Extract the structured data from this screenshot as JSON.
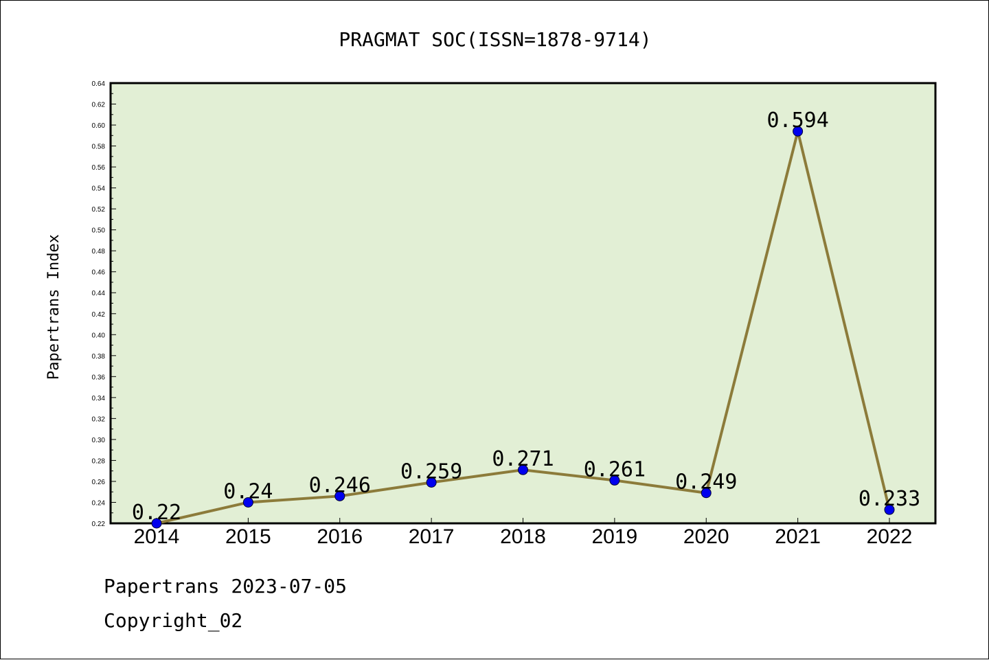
{
  "chart_data": {
    "type": "line",
    "title": "PRAGMAT SOC(ISSN=1878-9714)",
    "ylabel": "Papertrans Index",
    "xlabel": "",
    "categories": [
      "2014",
      "2015",
      "2016",
      "2017",
      "2018",
      "2019",
      "2020",
      "2021",
      "2022"
    ],
    "series": [
      {
        "values": [
          0.22,
          0.24,
          0.246,
          0.259,
          0.271,
          0.261,
          0.249,
          0.594,
          0.233
        ],
        "labels": [
          "0.22",
          "0.24",
          "0.246",
          "0.259",
          "0.271",
          "0.261",
          "0.249",
          "0.594",
          "0.233"
        ]
      }
    ],
    "ylim": [
      0.22,
      0.64
    ],
    "yticks": [
      "0.22",
      "0.24",
      "0.26",
      "0.28",
      "0.30",
      "0.32",
      "0.34",
      "0.36",
      "0.38",
      "0.40",
      "0.42",
      "0.44",
      "0.46",
      "0.48",
      "0.50",
      "0.52",
      "0.54",
      "0.56",
      "0.58",
      "0.60",
      "0.62",
      "0.64"
    ],
    "grid": false,
    "colors": {
      "plot_background": "#e2efd5",
      "line": "#8c7b3a",
      "marker": "#0000ee"
    }
  },
  "footer": {
    "source": "Papertrans 2023-07-05",
    "copyright": "Copyright_02"
  }
}
